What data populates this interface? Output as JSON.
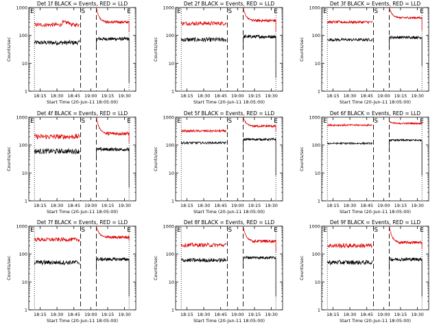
{
  "chart_data": [
    {
      "type": "line",
      "title": "Det 1f BLACK = Events, RED = LLD",
      "xlabel": "Start Time (20-Jun-11 18:05:00)",
      "ylabel": "Counts/sec",
      "yscale": "log",
      "ylim": [
        1,
        1000
      ],
      "yticks": [
        "1",
        "10",
        "100",
        "1000"
      ],
      "xticks": [
        "18:15",
        "18:30",
        "18:45",
        "19:00",
        "19:15",
        "19:30"
      ],
      "xlim": [
        "18:05",
        "19:40"
      ],
      "grid": false,
      "markers": [
        "E",
        "S",
        "E"
      ],
      "series": [
        {
          "name": "Events",
          "color": "#000000",
          "segments": [
            {
              "from": "18:10",
              "to": "18:50",
              "level": 55,
              "noise": 0.08
            },
            {
              "from": "19:05",
              "to": "19:34",
              "level": 75,
              "noise": 0.06,
              "dropTo": 2
            }
          ]
        },
        {
          "name": "LLD",
          "color": "#dd0000",
          "segments": [
            {
              "from": "18:10",
              "to": "18:50",
              "level": 240,
              "noise": 0.07,
              "bumpAt": "18:38",
              "bump": 1.2
            },
            {
              "from": "19:05",
              "to": "19:34",
              "level": 300,
              "noise": 0.05,
              "spike": 1000,
              "dropTo": 130
            }
          ]
        }
      ]
    },
    {
      "type": "line",
      "title": "Det 2f BLACK = Events, RED = LLD",
      "xlabel": "Start Time (20-Jun-11 18:05:00)",
      "ylabel": "Counts/sec",
      "yscale": "log",
      "ylim": [
        1,
        1000
      ],
      "yticks": [
        "1",
        "10",
        "100",
        "1000"
      ],
      "xticks": [
        "18:15",
        "18:30",
        "18:45",
        "19:00",
        "19:15",
        "19:30"
      ],
      "xlim": [
        "18:05",
        "19:40"
      ],
      "grid": false,
      "markers": [
        "E",
        "S",
        "E"
      ],
      "series": [
        {
          "name": "Events",
          "color": "#000000",
          "segments": [
            {
              "from": "18:10",
              "to": "18:50",
              "level": 70,
              "noise": 0.08
            },
            {
              "from": "19:05",
              "to": "19:34",
              "level": 90,
              "noise": 0.06,
              "dropTo": 3
            }
          ]
        },
        {
          "name": "LLD",
          "color": "#dd0000",
          "segments": [
            {
              "from": "18:10",
              "to": "18:50",
              "level": 270,
              "noise": 0.07
            },
            {
              "from": "19:05",
              "to": "19:34",
              "level": 340,
              "noise": 0.05,
              "spike": 1000,
              "dropTo": 140
            }
          ]
        }
      ]
    },
    {
      "type": "line",
      "title": "Det 3f BLACK = Events, RED = LLD",
      "xlabel": "Start Time (20-Jun-11 18:05:00)",
      "ylabel": "Counts/sec",
      "yscale": "log",
      "ylim": [
        1,
        1000
      ],
      "yticks": [
        "1",
        "10",
        "100",
        "1000"
      ],
      "xticks": [
        "18:15",
        "18:30",
        "18:45",
        "19:00",
        "19:15",
        "19:30"
      ],
      "xlim": [
        "18:05",
        "19:40"
      ],
      "grid": false,
      "markers": [
        "E",
        "S",
        "E"
      ],
      "series": [
        {
          "name": "Events",
          "color": "#000000",
          "segments": [
            {
              "from": "18:10",
              "to": "18:50",
              "level": 70,
              "noise": 0.05
            },
            {
              "from": "19:05",
              "to": "19:34",
              "level": 85,
              "noise": 0.05,
              "dropTo": 8
            }
          ]
        },
        {
          "name": "LLD",
          "color": "#dd0000",
          "segments": [
            {
              "from": "18:10",
              "to": "18:50",
              "level": 300,
              "noise": 0.05
            },
            {
              "from": "19:05",
              "to": "19:34",
              "level": 430,
              "noise": 0.04,
              "spike": 1000,
              "dropTo": 150
            }
          ]
        }
      ]
    },
    {
      "type": "line",
      "title": "Det 4f BLACK = Events, RED = LLD",
      "xlabel": "Start Time (20-Jun-11 18:05:00)",
      "ylabel": "Counts/sec",
      "yscale": "log",
      "ylim": [
        1,
        1000
      ],
      "yticks": [
        "1",
        "10",
        "100",
        "1000"
      ],
      "xticks": [
        "18:15",
        "18:30",
        "18:45",
        "19:00",
        "19:15",
        "19:30"
      ],
      "xlim": [
        "18:05",
        "19:40"
      ],
      "grid": false,
      "markers": [
        "E",
        "S",
        "E"
      ],
      "series": [
        {
          "name": "Events",
          "color": "#000000",
          "segments": [
            {
              "from": "18:10",
              "to": "18:50",
              "level": 60,
              "noise": 0.09
            },
            {
              "from": "19:05",
              "to": "19:34",
              "level": 70,
              "noise": 0.06,
              "dropTo": 3
            }
          ]
        },
        {
          "name": "LLD",
          "color": "#dd0000",
          "segments": [
            {
              "from": "18:10",
              "to": "18:50",
              "level": 200,
              "noise": 0.09
            },
            {
              "from": "19:05",
              "to": "19:34",
              "level": 260,
              "noise": 0.06,
              "spike": 1000,
              "dropTo": 120
            }
          ]
        }
      ]
    },
    {
      "type": "line",
      "title": "Det 5f BLACK = Events, RED = LLD",
      "xlabel": "Start Time (20-Jun-11 18:05:00)",
      "ylabel": "Counts/sec",
      "yscale": "log",
      "ylim": [
        1,
        1000
      ],
      "yticks": [
        "1",
        "10",
        "100",
        "1000"
      ],
      "xticks": [
        "18:15",
        "18:30",
        "18:45",
        "19:00",
        "19:15",
        "19:30"
      ],
      "xlim": [
        "18:05",
        "19:40"
      ],
      "grid": false,
      "markers": [
        "E",
        "S",
        "E"
      ],
      "series": [
        {
          "name": "Events",
          "color": "#000000",
          "segments": [
            {
              "from": "18:10",
              "to": "18:50",
              "level": 120,
              "noise": 0.04
            },
            {
              "from": "19:05",
              "to": "19:34",
              "level": 160,
              "noise": 0.04,
              "dropTo": 8
            }
          ]
        },
        {
          "name": "LLD",
          "color": "#dd0000",
          "segments": [
            {
              "from": "18:10",
              "to": "18:50",
              "level": 320,
              "noise": 0.04
            },
            {
              "from": "19:05",
              "to": "19:34",
              "level": 480,
              "noise": 0.04,
              "spike": 1000,
              "dropTo": 300
            }
          ]
        }
      ]
    },
    {
      "type": "line",
      "title": "Det 6f BLACK = Events, RED = LLD",
      "xlabel": "Start Time (20-Jun-11 18:05:00)",
      "ylabel": "Counts/sec",
      "yscale": "log",
      "ylim": [
        1,
        1000
      ],
      "yticks": [
        "1",
        "10",
        "100",
        "1000"
      ],
      "xticks": [
        "18:15",
        "18:30",
        "18:45",
        "19:00",
        "19:15",
        "19:30"
      ],
      "xlim": [
        "18:05",
        "19:40"
      ],
      "grid": false,
      "markers": [
        "E",
        "S",
        "E"
      ],
      "series": [
        {
          "name": "Events",
          "color": "#000000",
          "segments": [
            {
              "from": "18:10",
              "to": "18:50",
              "level": 115,
              "noise": 0.03
            },
            {
              "from": "19:05",
              "to": "19:34",
              "level": 150,
              "noise": 0.03,
              "dropTo": 8
            }
          ]
        },
        {
          "name": "LLD",
          "color": "#dd0000",
          "segments": [
            {
              "from": "18:10",
              "to": "18:50",
              "level": 520,
              "noise": 0.03
            },
            {
              "from": "19:05",
              "to": "19:34",
              "level": 600,
              "noise": 0.03,
              "spike": 700,
              "dropTo": 600
            }
          ]
        }
      ]
    },
    {
      "type": "line",
      "title": "Det 7f BLACK = Events, RED = LLD",
      "xlabel": "Start Time (20-Jun-11 18:05:00)",
      "ylabel": "Counts/sec",
      "yscale": "log",
      "ylim": [
        1,
        1000
      ],
      "yticks": [
        "1",
        "10",
        "100",
        "1000"
      ],
      "xticks": [
        "18:15",
        "18:30",
        "18:45",
        "19:00",
        "19:15",
        "19:30"
      ],
      "xlim": [
        "18:05",
        "19:40"
      ],
      "grid": false,
      "markers": [
        "E",
        "S",
        "E"
      ],
      "series": [
        {
          "name": "Events",
          "color": "#000000",
          "segments": [
            {
              "from": "18:10",
              "to": "18:50",
              "level": 50,
              "noise": 0.08
            },
            {
              "from": "19:05",
              "to": "19:34",
              "level": 65,
              "noise": 0.06,
              "dropTo": 3
            }
          ]
        },
        {
          "name": "LLD",
          "color": "#dd0000",
          "segments": [
            {
              "from": "18:10",
              "to": "18:50",
              "level": 330,
              "noise": 0.07
            },
            {
              "from": "19:05",
              "to": "19:34",
              "level": 400,
              "noise": 0.05,
              "spike": 1000,
              "dropTo": 300
            }
          ]
        }
      ]
    },
    {
      "type": "line",
      "title": "Det 8f BLACK = Events, RED = LLD",
      "xlabel": "Start Time (20-Jun-11 18:05:00)",
      "ylabel": "Counts/sec",
      "yscale": "log",
      "ylim": [
        1,
        1000
      ],
      "yticks": [
        "1",
        "10",
        "100",
        "1000"
      ],
      "xticks": [
        "18:15",
        "18:30",
        "18:45",
        "19:00",
        "19:15",
        "19:30"
      ],
      "xlim": [
        "18:05",
        "19:40"
      ],
      "grid": false,
      "markers": [
        "E",
        "S",
        "E"
      ],
      "series": [
        {
          "name": "Events",
          "color": "#000000",
          "segments": [
            {
              "from": "18:10",
              "to": "18:50",
              "level": 60,
              "noise": 0.07
            },
            {
              "from": "19:05",
              "to": "19:34",
              "level": 75,
              "noise": 0.05,
              "dropTo": 3
            }
          ]
        },
        {
          "name": "LLD",
          "color": "#dd0000",
          "segments": [
            {
              "from": "18:10",
              "to": "18:50",
              "level": 210,
              "noise": 0.07
            },
            {
              "from": "19:05",
              "to": "19:34",
              "level": 290,
              "noise": 0.05,
              "spike": 1000,
              "dropTo": 120
            }
          ]
        }
      ]
    },
    {
      "type": "line",
      "title": "Det 9f BLACK = Events, RED = LLD",
      "xlabel": "Start Time (20-Jun-11 18:05:00)",
      "ylabel": "Counts/sec",
      "yscale": "log",
      "ylim": [
        1,
        1000
      ],
      "yticks": [
        "1",
        "10",
        "100",
        "1000"
      ],
      "xticks": [
        "18:15",
        "18:30",
        "18:45",
        "19:00",
        "19:15",
        "19:30"
      ],
      "xlim": [
        "18:05",
        "19:40"
      ],
      "grid": false,
      "markers": [
        "E",
        "S",
        "E"
      ],
      "series": [
        {
          "name": "Events",
          "color": "#000000",
          "segments": [
            {
              "from": "18:10",
              "to": "18:50",
              "level": 50,
              "noise": 0.08
            },
            {
              "from": "19:05",
              "to": "19:34",
              "level": 65,
              "noise": 0.06,
              "dropTo": 3
            }
          ]
        },
        {
          "name": "LLD",
          "color": "#dd0000",
          "segments": [
            {
              "from": "18:10",
              "to": "18:50",
              "level": 200,
              "noise": 0.08
            },
            {
              "from": "19:05",
              "to": "19:34",
              "level": 260,
              "noise": 0.05,
              "spike": 1000,
              "dropTo": 150
            }
          ]
        }
      ]
    }
  ]
}
